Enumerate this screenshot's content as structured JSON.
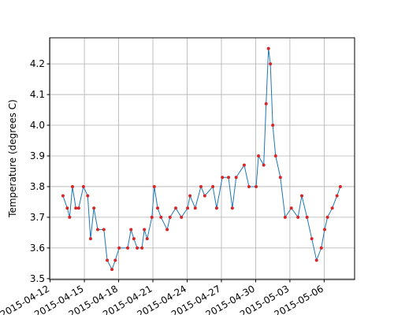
{
  "chart_data": {
    "type": "line",
    "ylabel": "Temperature (degrees C)",
    "x": [
      "2015-04-13T03:00",
      "2015-04-13T12:00",
      "2015-04-13T17:00",
      "2015-04-13T23:00",
      "2015-04-14T06:00",
      "2015-04-14T12:00",
      "2015-04-14T22:00",
      "2015-04-15T07:00",
      "2015-04-15T13:00",
      "2015-04-15T20:00",
      "2015-04-16T04:00",
      "2015-04-16T17:00",
      "2015-04-17T00:00",
      "2015-04-17T10:00",
      "2015-04-17T17:00",
      "2015-04-18T01:00",
      "2015-04-18T19:00",
      "2015-04-19T02:00",
      "2015-04-19T08:00",
      "2015-04-19T15:00",
      "2015-04-20T01:00",
      "2015-04-20T06:00",
      "2015-04-20T12:00",
      "2015-04-20T22:00",
      "2015-04-21T03:00",
      "2015-04-21T10:00",
      "2015-04-21T17:00",
      "2015-04-22T06:00",
      "2015-04-22T12:00",
      "2015-04-23T00:00",
      "2015-04-23T12:00",
      "2015-04-24T01:00",
      "2015-04-24T06:00",
      "2015-04-24T17:00",
      "2015-04-25T05:00",
      "2015-04-25T13:00",
      "2015-04-26T06:00",
      "2015-04-26T14:00",
      "2015-04-27T02:00",
      "2015-04-27T15:00",
      "2015-04-27T23:00",
      "2015-04-28T07:00",
      "2015-04-29T00:00",
      "2015-04-29T10:00",
      "2015-04-30T01:00",
      "2015-04-30T06:00",
      "2015-04-30T17:00",
      "2015-04-30T22:00",
      "2015-05-01T03:00",
      "2015-05-01T07:00",
      "2015-05-01T12:00",
      "2015-05-01T18:00",
      "2015-05-02T04:00",
      "2015-05-02T14:00",
      "2015-05-03T03:00",
      "2015-05-03T17:00",
      "2015-05-04T01:00",
      "2015-05-04T12:00",
      "2015-05-04T22:00",
      "2015-05-05T08:00",
      "2015-05-05T18:00",
      "2015-05-06T01:00",
      "2015-05-06T07:00",
      "2015-05-06T17:00",
      "2015-05-07T03:00",
      "2015-05-07T10:00"
    ],
    "series": [
      {
        "color": "#1f77b4",
        "marker_color": "#d62728",
        "values": [
          3.77,
          3.73,
          3.7,
          3.8,
          3.73,
          3.73,
          3.8,
          3.77,
          3.63,
          3.73,
          3.66,
          3.66,
          3.56,
          3.53,
          3.56,
          3.6,
          3.6,
          3.66,
          3.63,
          3.6,
          3.6,
          3.66,
          3.63,
          3.7,
          3.8,
          3.73,
          3.7,
          3.66,
          3.7,
          3.73,
          3.7,
          3.73,
          3.77,
          3.73,
          3.8,
          3.77,
          3.8,
          3.73,
          3.83,
          3.83,
          3.73,
          3.83,
          3.87,
          3.8,
          3.8,
          3.9,
          3.87,
          4.07,
          4.25,
          4.2,
          4.0,
          3.9,
          3.83,
          3.7,
          3.73,
          3.7,
          3.77,
          3.7,
          3.63,
          3.56,
          3.6,
          3.66,
          3.7,
          3.73,
          3.77,
          3.8
        ]
      }
    ],
    "xlim": [
      "2015-04-11T23:00",
      "2015-05-08T16:00"
    ],
    "xticks": [
      "2015-04-12",
      "2015-04-15",
      "2015-04-18",
      "2015-04-21",
      "2015-04-24",
      "2015-04-27",
      "2015-04-30",
      "2015-05-03",
      "2015-05-06"
    ],
    "ylim": [
      3.497,
      4.285
    ],
    "yticks": [
      3.5,
      3.6,
      3.7,
      3.8,
      3.9,
      {
        "value": 4,
        "label": "4.0"
      },
      4.1,
      4.2
    ],
    "grid": true
  }
}
